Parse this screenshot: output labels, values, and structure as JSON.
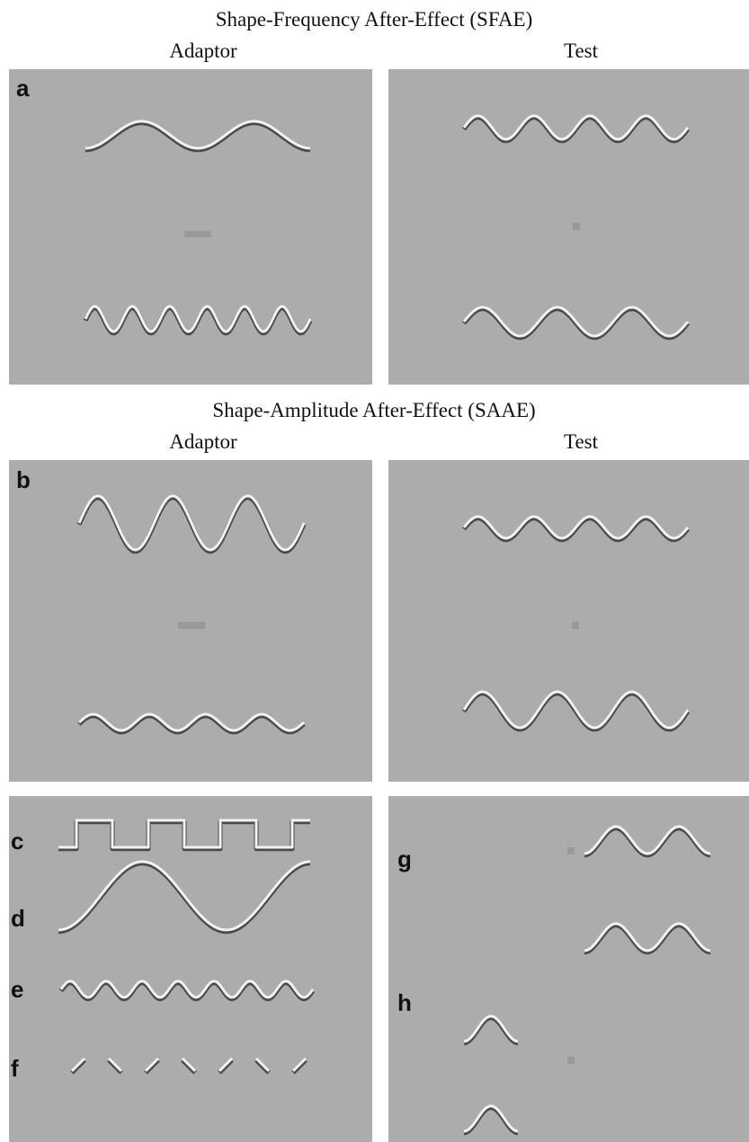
{
  "sections": [
    {
      "title": "Shape-Frequency After-Effect (SFAE)",
      "columns": [
        "Adaptor",
        "Test"
      ],
      "panel": "a"
    },
    {
      "title": "Shape-Amplitude After-Effect (SAAE)",
      "columns": [
        "Adaptor",
        "Test"
      ],
      "panel": "b"
    }
  ],
  "examples": [
    "c",
    "d",
    "e",
    "f"
  ],
  "examples_right": [
    "g",
    "h"
  ]
}
